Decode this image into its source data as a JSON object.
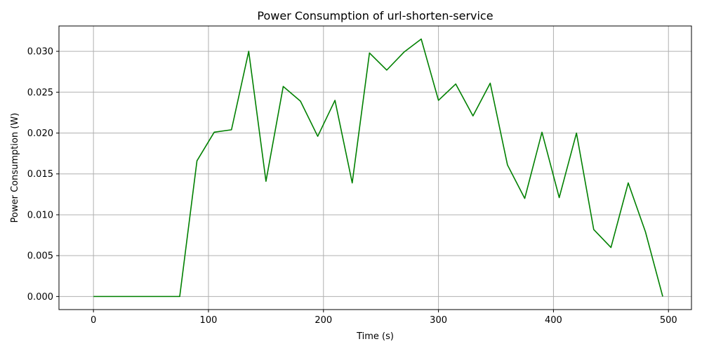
{
  "chart_data": {
    "type": "line",
    "title": "Power Consumption of url-shorten-service",
    "xlabel": "Time (s)",
    "ylabel": "Power Consumption (W)",
    "xlim": [
      -30,
      520
    ],
    "ylim": [
      -0.0016,
      0.0331
    ],
    "xticks": [
      0,
      100,
      200,
      300,
      400,
      500
    ],
    "xtick_labels": [
      "0",
      "100",
      "200",
      "300",
      "400",
      "500"
    ],
    "yticks": [
      0.0,
      0.005,
      0.01,
      0.015,
      0.02,
      0.025,
      0.03
    ],
    "ytick_labels": [
      "0.000",
      "0.005",
      "0.010",
      "0.015",
      "0.020",
      "0.025",
      "0.030"
    ],
    "grid": true,
    "legend": false,
    "series": [
      {
        "color": "#008000",
        "x": [
          0,
          15,
          30,
          45,
          60,
          75,
          90,
          105,
          120,
          135,
          150,
          165,
          180,
          195,
          210,
          225,
          240,
          255,
          270,
          285,
          300,
          315,
          330,
          345,
          360,
          375,
          390,
          405,
          420,
          435,
          450,
          465,
          480,
          495
        ],
        "y": [
          0,
          0,
          0,
          0,
          0,
          0,
          0.0166,
          0.0201,
          0.0204,
          0.03,
          0.0141,
          0.0257,
          0.0239,
          0.0196,
          0.024,
          0.0139,
          0.0298,
          0.0277,
          0.0299,
          0.0315,
          0.024,
          0.026,
          0.0221,
          0.0261,
          0.0161,
          0.012,
          0.0201,
          0.0121,
          0.02,
          0.0082,
          0.006,
          0.0139,
          0.0079,
          0.0
        ]
      }
    ]
  }
}
